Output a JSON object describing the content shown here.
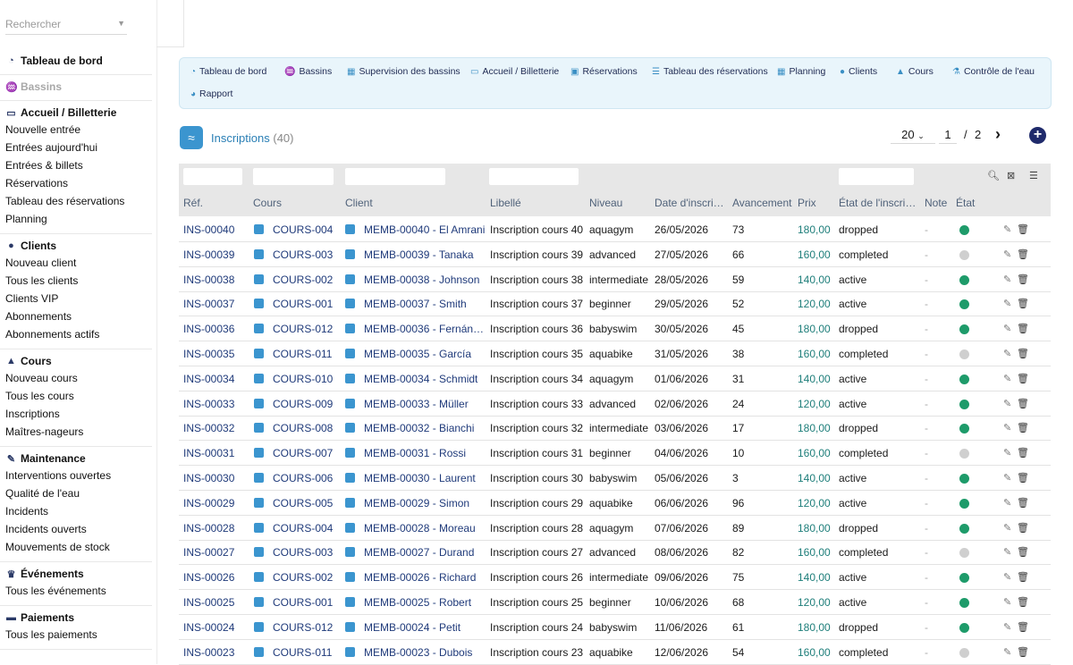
{
  "search": {
    "placeholder": "Rechercher"
  },
  "sidebar": {
    "sections": [
      {
        "title": "Tableau de bord",
        "icon": "dashboard-icon",
        "disabled": false,
        "items": []
      },
      {
        "title": "Bassins",
        "icon": "pool-icon",
        "disabled": true,
        "items": []
      },
      {
        "title": "Accueil / Billetterie",
        "icon": "ticket-icon",
        "disabled": false,
        "items": [
          "Nouvelle entrée",
          "Entrées aujourd'hui",
          "Entrées & billets",
          "Réservations",
          "Tableau des réservations",
          "Planning"
        ]
      },
      {
        "title": "Clients",
        "icon": "user-icon",
        "disabled": false,
        "items": [
          "Nouveau client",
          "Tous les clients",
          "Clients VIP",
          "Abonnements",
          "Abonnements actifs"
        ]
      },
      {
        "title": "Cours",
        "icon": "graduation-cap-icon",
        "disabled": false,
        "items": [
          "Nouveau cours",
          "Tous les cours",
          "Inscriptions",
          "Maîtres-nageurs"
        ]
      },
      {
        "title": "Maintenance",
        "icon": "wrench-icon",
        "disabled": false,
        "items": [
          "Interventions ouvertes",
          "Qualité de l'eau",
          "Incidents",
          "Incidents ouverts",
          "Mouvements de stock"
        ]
      },
      {
        "title": "Événements",
        "icon": "trophy-icon",
        "disabled": false,
        "items": [
          "Tous les événements"
        ]
      },
      {
        "title": "Paiements",
        "icon": "money-icon",
        "disabled": false,
        "items": [
          "Tous les paiements"
        ]
      }
    ]
  },
  "nav": {
    "row1": [
      "Tableau de bord",
      "Bassins",
      "Supervision des bassins",
      "Accueil / Billetterie",
      "Réservations",
      "Tableau des réservations",
      "Planning",
      "Clients",
      "Cours",
      "Contrôle de l'eau"
    ],
    "row2": [
      "Rapport"
    ]
  },
  "page": {
    "title": "Inscriptions",
    "count": "(40)"
  },
  "pager": {
    "page_size": "20",
    "current": "1",
    "sep": "/",
    "total": "2"
  },
  "table": {
    "headers": [
      "Réf.",
      "Cours",
      "Client",
      "Libellé",
      "Niveau",
      "Date d'inscri…",
      "Avancement",
      "Prix",
      "État de l'inscri…",
      "Note",
      "État"
    ],
    "status_colors": {
      "on": "#1e9b6a",
      "off": "#cfcfcf"
    },
    "rows": [
      {
        "ref": "INS-00040",
        "cours": "COURS-004",
        "client": "MEMB-00040 - El Amrani",
        "libelle": "Inscription cours 40",
        "niveau": "aquagym",
        "date": "26/05/2026",
        "avancement": "73",
        "prix": "180,00",
        "etat_inscr": "dropped",
        "note": "-",
        "active": true
      },
      {
        "ref": "INS-00039",
        "cours": "COURS-003",
        "client": "MEMB-00039 - Tanaka",
        "libelle": "Inscription cours 39",
        "niveau": "advanced",
        "date": "27/05/2026",
        "avancement": "66",
        "prix": "160,00",
        "etat_inscr": "completed",
        "note": "-",
        "active": false
      },
      {
        "ref": "INS-00038",
        "cours": "COURS-002",
        "client": "MEMB-00038 - Johnson",
        "libelle": "Inscription cours 38",
        "niveau": "intermediate",
        "date": "28/05/2026",
        "avancement": "59",
        "prix": "140,00",
        "etat_inscr": "active",
        "note": "-",
        "active": true
      },
      {
        "ref": "INS-00037",
        "cours": "COURS-001",
        "client": "MEMB-00037 - Smith",
        "libelle": "Inscription cours 37",
        "niveau": "beginner",
        "date": "29/05/2026",
        "avancement": "52",
        "prix": "120,00",
        "etat_inscr": "active",
        "note": "-",
        "active": true
      },
      {
        "ref": "INS-00036",
        "cours": "COURS-012",
        "client": "MEMB-00036 - Fernán…",
        "libelle": "Inscription cours 36",
        "niveau": "babyswim",
        "date": "30/05/2026",
        "avancement": "45",
        "prix": "180,00",
        "etat_inscr": "dropped",
        "note": "-",
        "active": true
      },
      {
        "ref": "INS-00035",
        "cours": "COURS-011",
        "client": "MEMB-00035 - García",
        "libelle": "Inscription cours 35",
        "niveau": "aquabike",
        "date": "31/05/2026",
        "avancement": "38",
        "prix": "160,00",
        "etat_inscr": "completed",
        "note": "-",
        "active": false
      },
      {
        "ref": "INS-00034",
        "cours": "COURS-010",
        "client": "MEMB-00034 - Schmidt",
        "libelle": "Inscription cours 34",
        "niveau": "aquagym",
        "date": "01/06/2026",
        "avancement": "31",
        "prix": "140,00",
        "etat_inscr": "active",
        "note": "-",
        "active": true
      },
      {
        "ref": "INS-00033",
        "cours": "COURS-009",
        "client": "MEMB-00033 - Müller",
        "libelle": "Inscription cours 33",
        "niveau": "advanced",
        "date": "02/06/2026",
        "avancement": "24",
        "prix": "120,00",
        "etat_inscr": "active",
        "note": "-",
        "active": true
      },
      {
        "ref": "INS-00032",
        "cours": "COURS-008",
        "client": "MEMB-00032 - Bianchi",
        "libelle": "Inscription cours 32",
        "niveau": "intermediate",
        "date": "03/06/2026",
        "avancement": "17",
        "prix": "180,00",
        "etat_inscr": "dropped",
        "note": "-",
        "active": true
      },
      {
        "ref": "INS-00031",
        "cours": "COURS-007",
        "client": "MEMB-00031 - Rossi",
        "libelle": "Inscription cours 31",
        "niveau": "beginner",
        "date": "04/06/2026",
        "avancement": "10",
        "prix": "160,00",
        "etat_inscr": "completed",
        "note": "-",
        "active": false
      },
      {
        "ref": "INS-00030",
        "cours": "COURS-006",
        "client": "MEMB-00030 - Laurent",
        "libelle": "Inscription cours 30",
        "niveau": "babyswim",
        "date": "05/06/2026",
        "avancement": "3",
        "prix": "140,00",
        "etat_inscr": "active",
        "note": "-",
        "active": true
      },
      {
        "ref": "INS-00029",
        "cours": "COURS-005",
        "client": "MEMB-00029 - Simon",
        "libelle": "Inscription cours 29",
        "niveau": "aquabike",
        "date": "06/06/2026",
        "avancement": "96",
        "prix": "120,00",
        "etat_inscr": "active",
        "note": "-",
        "active": true
      },
      {
        "ref": "INS-00028",
        "cours": "COURS-004",
        "client": "MEMB-00028 - Moreau",
        "libelle": "Inscription cours 28",
        "niveau": "aquagym",
        "date": "07/06/2026",
        "avancement": "89",
        "prix": "180,00",
        "etat_inscr": "dropped",
        "note": "-",
        "active": true
      },
      {
        "ref": "INS-00027",
        "cours": "COURS-003",
        "client": "MEMB-00027 - Durand",
        "libelle": "Inscription cours 27",
        "niveau": "advanced",
        "date": "08/06/2026",
        "avancement": "82",
        "prix": "160,00",
        "etat_inscr": "completed",
        "note": "-",
        "active": false
      },
      {
        "ref": "INS-00026",
        "cours": "COURS-002",
        "client": "MEMB-00026 - Richard",
        "libelle": "Inscription cours 26",
        "niveau": "intermediate",
        "date": "09/06/2026",
        "avancement": "75",
        "prix": "140,00",
        "etat_inscr": "active",
        "note": "-",
        "active": true
      },
      {
        "ref": "INS-00025",
        "cours": "COURS-001",
        "client": "MEMB-00025 - Robert",
        "libelle": "Inscription cours 25",
        "niveau": "beginner",
        "date": "10/06/2026",
        "avancement": "68",
        "prix": "120,00",
        "etat_inscr": "active",
        "note": "-",
        "active": true
      },
      {
        "ref": "INS-00024",
        "cours": "COURS-012",
        "client": "MEMB-00024 - Petit",
        "libelle": "Inscription cours 24",
        "niveau": "babyswim",
        "date": "11/06/2026",
        "avancement": "61",
        "prix": "180,00",
        "etat_inscr": "dropped",
        "note": "-",
        "active": true
      },
      {
        "ref": "INS-00023",
        "cours": "COURS-011",
        "client": "MEMB-00023 - Dubois",
        "libelle": "Inscription cours 23",
        "niveau": "aquabike",
        "date": "12/06/2026",
        "avancement": "54",
        "prix": "160,00",
        "etat_inscr": "completed",
        "note": "-",
        "active": false
      }
    ]
  }
}
